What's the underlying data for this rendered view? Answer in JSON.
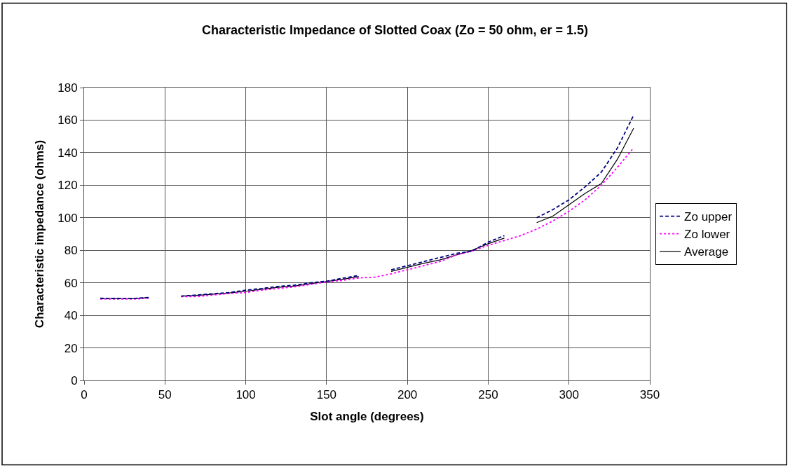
{
  "chart_data": {
    "type": "line",
    "title": "Characteristic Impedance of Slotted Coax (Zo = 50 ohm, er = 1.5)",
    "xlabel": "Slot angle (degrees)",
    "ylabel": "Characteristic impedance (ohms)",
    "x": [
      10,
      20,
      30,
      40,
      50,
      60,
      70,
      80,
      90,
      100,
      110,
      120,
      130,
      140,
      150,
      160,
      170,
      180,
      190,
      200,
      210,
      220,
      230,
      240,
      250,
      260,
      270,
      280,
      290,
      300,
      310,
      320,
      330,
      340
    ],
    "series": [
      {
        "name": "Zo upper",
        "color": "#000080",
        "line_style": "dashed",
        "values": [
          50.5,
          50.4,
          50.3,
          51,
          null,
          51.8,
          52.5,
          53.3,
          54,
          55.5,
          56.5,
          57.8,
          58.5,
          60,
          61,
          62.8,
          64.5,
          null,
          68,
          70.5,
          73,
          75.5,
          78,
          79.5,
          85,
          89,
          null,
          100,
          105,
          111,
          119,
          128,
          143,
          163
        ]
      },
      {
        "name": "Zo lower",
        "color": "#ff00ff",
        "line_style": "dotted",
        "values": [
          50,
          50,
          50,
          50.5,
          null,
          51.5,
          51.5,
          52.5,
          53.5,
          54,
          55.5,
          56.5,
          57.5,
          59,
          60.5,
          61.5,
          63,
          63.5,
          65.5,
          68,
          70.5,
          73,
          77,
          79.5,
          83,
          86,
          89,
          93,
          98,
          104,
          111,
          120,
          131,
          143
        ]
      },
      {
        "name": "Average",
        "color": "#000000",
        "line_style": "solid",
        "values": [
          50.3,
          50.2,
          50.2,
          51,
          null,
          51.8,
          52.3,
          53,
          53.8,
          54.8,
          56,
          57.2,
          58,
          59.5,
          60.8,
          62.2,
          63.8,
          null,
          67,
          69.5,
          72,
          74,
          77,
          80,
          84,
          87.5,
          null,
          97,
          101,
          108,
          115,
          121,
          136,
          155
        ]
      }
    ],
    "xlim": [
      0,
      350
    ],
    "xticks": [
      0,
      50,
      100,
      150,
      200,
      250,
      300,
      350
    ],
    "ylim": [
      0,
      180
    ],
    "yticks": [
      0,
      20,
      40,
      60,
      80,
      100,
      120,
      140,
      160,
      180
    ],
    "grid": true,
    "legend": "right",
    "marker": "none"
  }
}
